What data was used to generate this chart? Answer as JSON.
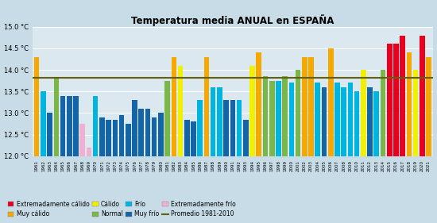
{
  "title": "Temperatura media ANUAL en ESPAÑA",
  "promedio": 13.82,
  "ylim": [
    12.0,
    15.0
  ],
  "yticks": [
    12.0,
    12.5,
    13.0,
    13.5,
    14.0,
    14.5,
    15.0
  ],
  "years": [
    1961,
    1962,
    1963,
    1964,
    1965,
    1966,
    1967,
    1968,
    1969,
    1970,
    1971,
    1972,
    1973,
    1974,
    1975,
    1976,
    1977,
    1978,
    1979,
    1980,
    1981,
    1982,
    1983,
    1984,
    1985,
    1986,
    1987,
    1988,
    1989,
    1990,
    1991,
    1992,
    1993,
    1994,
    1995,
    1996,
    1997,
    1998,
    1999,
    2000,
    2001,
    2002,
    2003,
    2004,
    2005,
    2006,
    2007,
    2008,
    2009,
    2010,
    2011,
    2012,
    2013,
    2014,
    2015,
    2016,
    2017,
    2018,
    2019,
    2020,
    2021
  ],
  "values": [
    14.3,
    13.5,
    13.0,
    13.8,
    13.4,
    13.4,
    13.4,
    12.75,
    12.2,
    13.4,
    12.9,
    12.85,
    12.85,
    12.95,
    12.75,
    13.3,
    13.1,
    13.1,
    12.9,
    13.0,
    13.75,
    14.3,
    14.1,
    12.85,
    12.8,
    13.3,
    14.3,
    13.6,
    13.6,
    13.3,
    13.3,
    13.3,
    12.85,
    14.1,
    14.4,
    13.85,
    13.75,
    13.75,
    13.85,
    13.7,
    14.0,
    14.3,
    14.3,
    13.7,
    13.6,
    14.5,
    13.7,
    13.6,
    13.7,
    13.5,
    14.0,
    13.6,
    13.5,
    14.0,
    14.6,
    14.6,
    14.8,
    14.4,
    14.0,
    14.8,
    14.3
  ],
  "colors": [
    "orange",
    "cyan",
    "darkblue",
    "green",
    "darkblue",
    "darkblue",
    "darkblue",
    "pink",
    "pink",
    "cyan",
    "darkblue",
    "darkblue",
    "darkblue",
    "darkblue",
    "darkblue",
    "darkblue",
    "darkblue",
    "darkblue",
    "darkblue",
    "darkblue",
    "green",
    "orange",
    "yellow",
    "darkblue",
    "darkblue",
    "cyan",
    "orange",
    "cyan",
    "cyan",
    "darkblue",
    "darkblue",
    "cyan",
    "darkblue",
    "yellow",
    "orange",
    "green",
    "green",
    "cyan",
    "green",
    "cyan",
    "green",
    "orange",
    "orange",
    "cyan",
    "darkblue",
    "orange",
    "cyan",
    "cyan",
    "cyan",
    "cyan",
    "yellow",
    "darkblue",
    "cyan",
    "green",
    "red",
    "red",
    "red",
    "orange",
    "yellow",
    "red",
    "orange"
  ],
  "color_map": {
    "red": "#e8001e",
    "orange": "#f5a800",
    "yellow": "#f0f000",
    "green": "#7ab648",
    "cyan": "#00b4e0",
    "darkblue": "#1464a8",
    "pink": "#f0b0d0"
  },
  "legend_items": [
    {
      "label": "Extremadamente cálido",
      "color": "#e8001e"
    },
    {
      "label": "Muy cálido",
      "color": "#f5a800"
    },
    {
      "label": "Cálido",
      "color": "#f0f000"
    },
    {
      "label": "Normal",
      "color": "#7ab648"
    },
    {
      "label": "Frío",
      "color": "#00b4e0"
    },
    {
      "label": "Muy frío",
      "color": "#1464a8"
    },
    {
      "label": "Extremadamente frío",
      "color": "#f0b0d0"
    },
    {
      "label": "Promedio 1981-2010",
      "color": "#606010"
    }
  ],
  "background_color": "#c8dce8",
  "plot_background": "#dce8f0"
}
